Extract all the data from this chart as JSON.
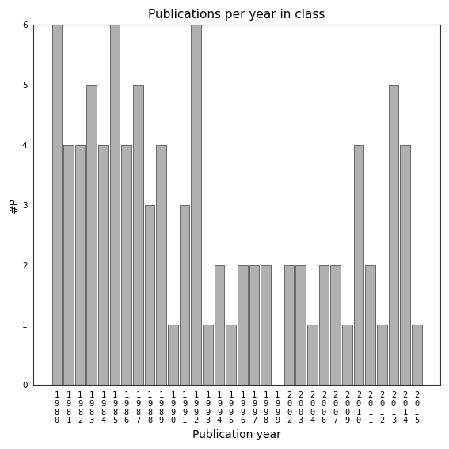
{
  "title": "Publications per year in class",
  "xlabel": "Publication year",
  "ylabel": "#P",
  "years": [
    "1980",
    "1981",
    "1982",
    "1983",
    "1984",
    "1985",
    "1986",
    "1987",
    "1988",
    "1989",
    "1990",
    "1991",
    "1992",
    "1993",
    "1994",
    "1995",
    "1996",
    "1997",
    "1998",
    "1999",
    "2002",
    "2003",
    "2004",
    "2006",
    "2007",
    "2009",
    "2010",
    "2011",
    "2012",
    "2013",
    "2014",
    "2015"
  ],
  "values": [
    6,
    4,
    4,
    5,
    4,
    6,
    4,
    5,
    3,
    4,
    1,
    3,
    6,
    1,
    2,
    1,
    2,
    2,
    2,
    0,
    2,
    2,
    1,
    2,
    2,
    1,
    4,
    2,
    1,
    5,
    4,
    1
  ],
  "bar_color": "#b0b0b0",
  "bar_edge_color": "#555555",
  "ylim": [
    0,
    6
  ],
  "yticks": [
    0,
    1,
    2,
    3,
    4,
    5,
    6
  ],
  "background_color": "#ffffff",
  "title_fontsize": 11,
  "axis_label_fontsize": 10,
  "tick_label_fontsize": 7.5
}
